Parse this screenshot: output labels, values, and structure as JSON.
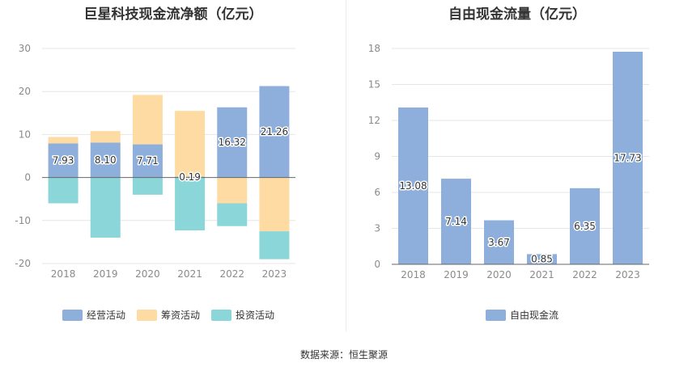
{
  "charts": {
    "left": {
      "title": "巨星科技现金流净额（亿元）"
    },
    "right": {
      "title": "自由现金流量（亿元）"
    }
  },
  "source": "数据来源：恒生聚源",
  "chart_data": [
    {
      "type": "bar",
      "stacked": true,
      "title": "巨星科技现金流净额（亿元）",
      "categories": [
        "2018",
        "2019",
        "2020",
        "2021",
        "2022",
        "2023"
      ],
      "series": [
        {
          "name": "经营活动",
          "color": "#8eaedb",
          "values": [
            7.93,
            8.1,
            7.71,
            0.19,
            16.32,
            21.26
          ],
          "labeled": true
        },
        {
          "name": "筹资活动",
          "color": "#fedba2",
          "values": [
            1.5,
            2.7,
            11.5,
            15.3,
            -6.0,
            -12.5
          ]
        },
        {
          "name": "投资活动",
          "color": "#8ad6d8",
          "values": [
            -6.0,
            -14.0,
            -4.0,
            -12.3,
            -5.3,
            -6.5
          ]
        }
      ],
      "ylim": [
        -20,
        30
      ],
      "yticks": [
        30,
        20,
        10,
        0,
        -10,
        -20
      ],
      "legend": "bottom",
      "grid": true
    },
    {
      "type": "bar",
      "title": "自由现金流量（亿元）",
      "categories": [
        "2018",
        "2019",
        "2020",
        "2021",
        "2022",
        "2023"
      ],
      "series": [
        {
          "name": "自由现金流",
          "color": "#8eaedb",
          "values": [
            13.08,
            7.14,
            3.67,
            0.85,
            6.35,
            17.73
          ]
        }
      ],
      "ylim": [
        0,
        18
      ],
      "yticks": [
        18,
        15,
        12,
        9,
        6,
        3,
        0
      ],
      "legend": "bottom",
      "grid": true
    }
  ]
}
